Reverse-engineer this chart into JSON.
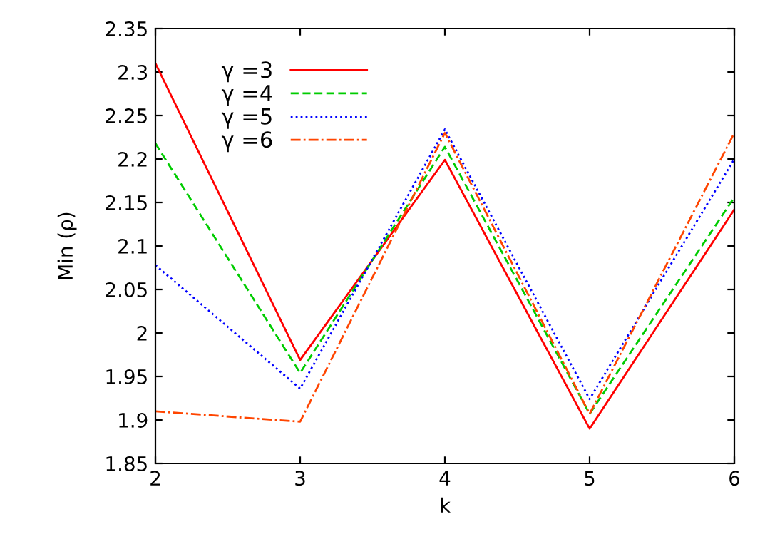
{
  "chart_data": {
    "type": "line",
    "xlabel": "k",
    "ylabel": "Min (ρ)",
    "x": [
      2,
      3,
      4,
      5,
      6
    ],
    "series": [
      {
        "name": "γ =3",
        "color": "#ff0000",
        "line_style": "solid",
        "values": [
          2.31,
          1.969,
          2.199,
          1.89,
          2.142
        ]
      },
      {
        "name": "γ =4",
        "color": "#00cc00",
        "line_style": "dashed",
        "values": [
          2.218,
          1.954,
          2.214,
          1.907,
          2.156
        ]
      },
      {
        "name": "γ =5",
        "color": "#0000ff",
        "line_style": "dotted",
        "values": [
          2.078,
          1.936,
          2.234,
          1.924,
          2.2
        ]
      },
      {
        "name": "γ =6",
        "color": "#ff4500",
        "line_style": "dashdot",
        "values": [
          1.91,
          1.898,
          2.23,
          1.907,
          2.23
        ]
      }
    ],
    "xlim": [
      2,
      6
    ],
    "xticks": [
      2,
      3,
      4,
      5,
      6
    ],
    "ylim": [
      1.85,
      2.35
    ],
    "yticks": [
      {
        "value": 1.85,
        "label": "1.85"
      },
      {
        "value": 1.9,
        "label": "1.9"
      },
      {
        "value": 1.95,
        "label": "1.95"
      },
      {
        "value": 2,
        "label": "2"
      },
      {
        "value": 2.05,
        "label": "2.05"
      },
      {
        "value": 2.1,
        "label": "2.1"
      },
      {
        "value": 2.15,
        "label": "2.15"
      },
      {
        "value": 2.2,
        "label": "2.2"
      },
      {
        "value": 2.25,
        "label": "2.25"
      },
      {
        "value": 2.3,
        "label": "2.3"
      },
      {
        "value": 2.35,
        "label": "2.35"
      }
    ],
    "legend": "top left",
    "grid": false
  }
}
